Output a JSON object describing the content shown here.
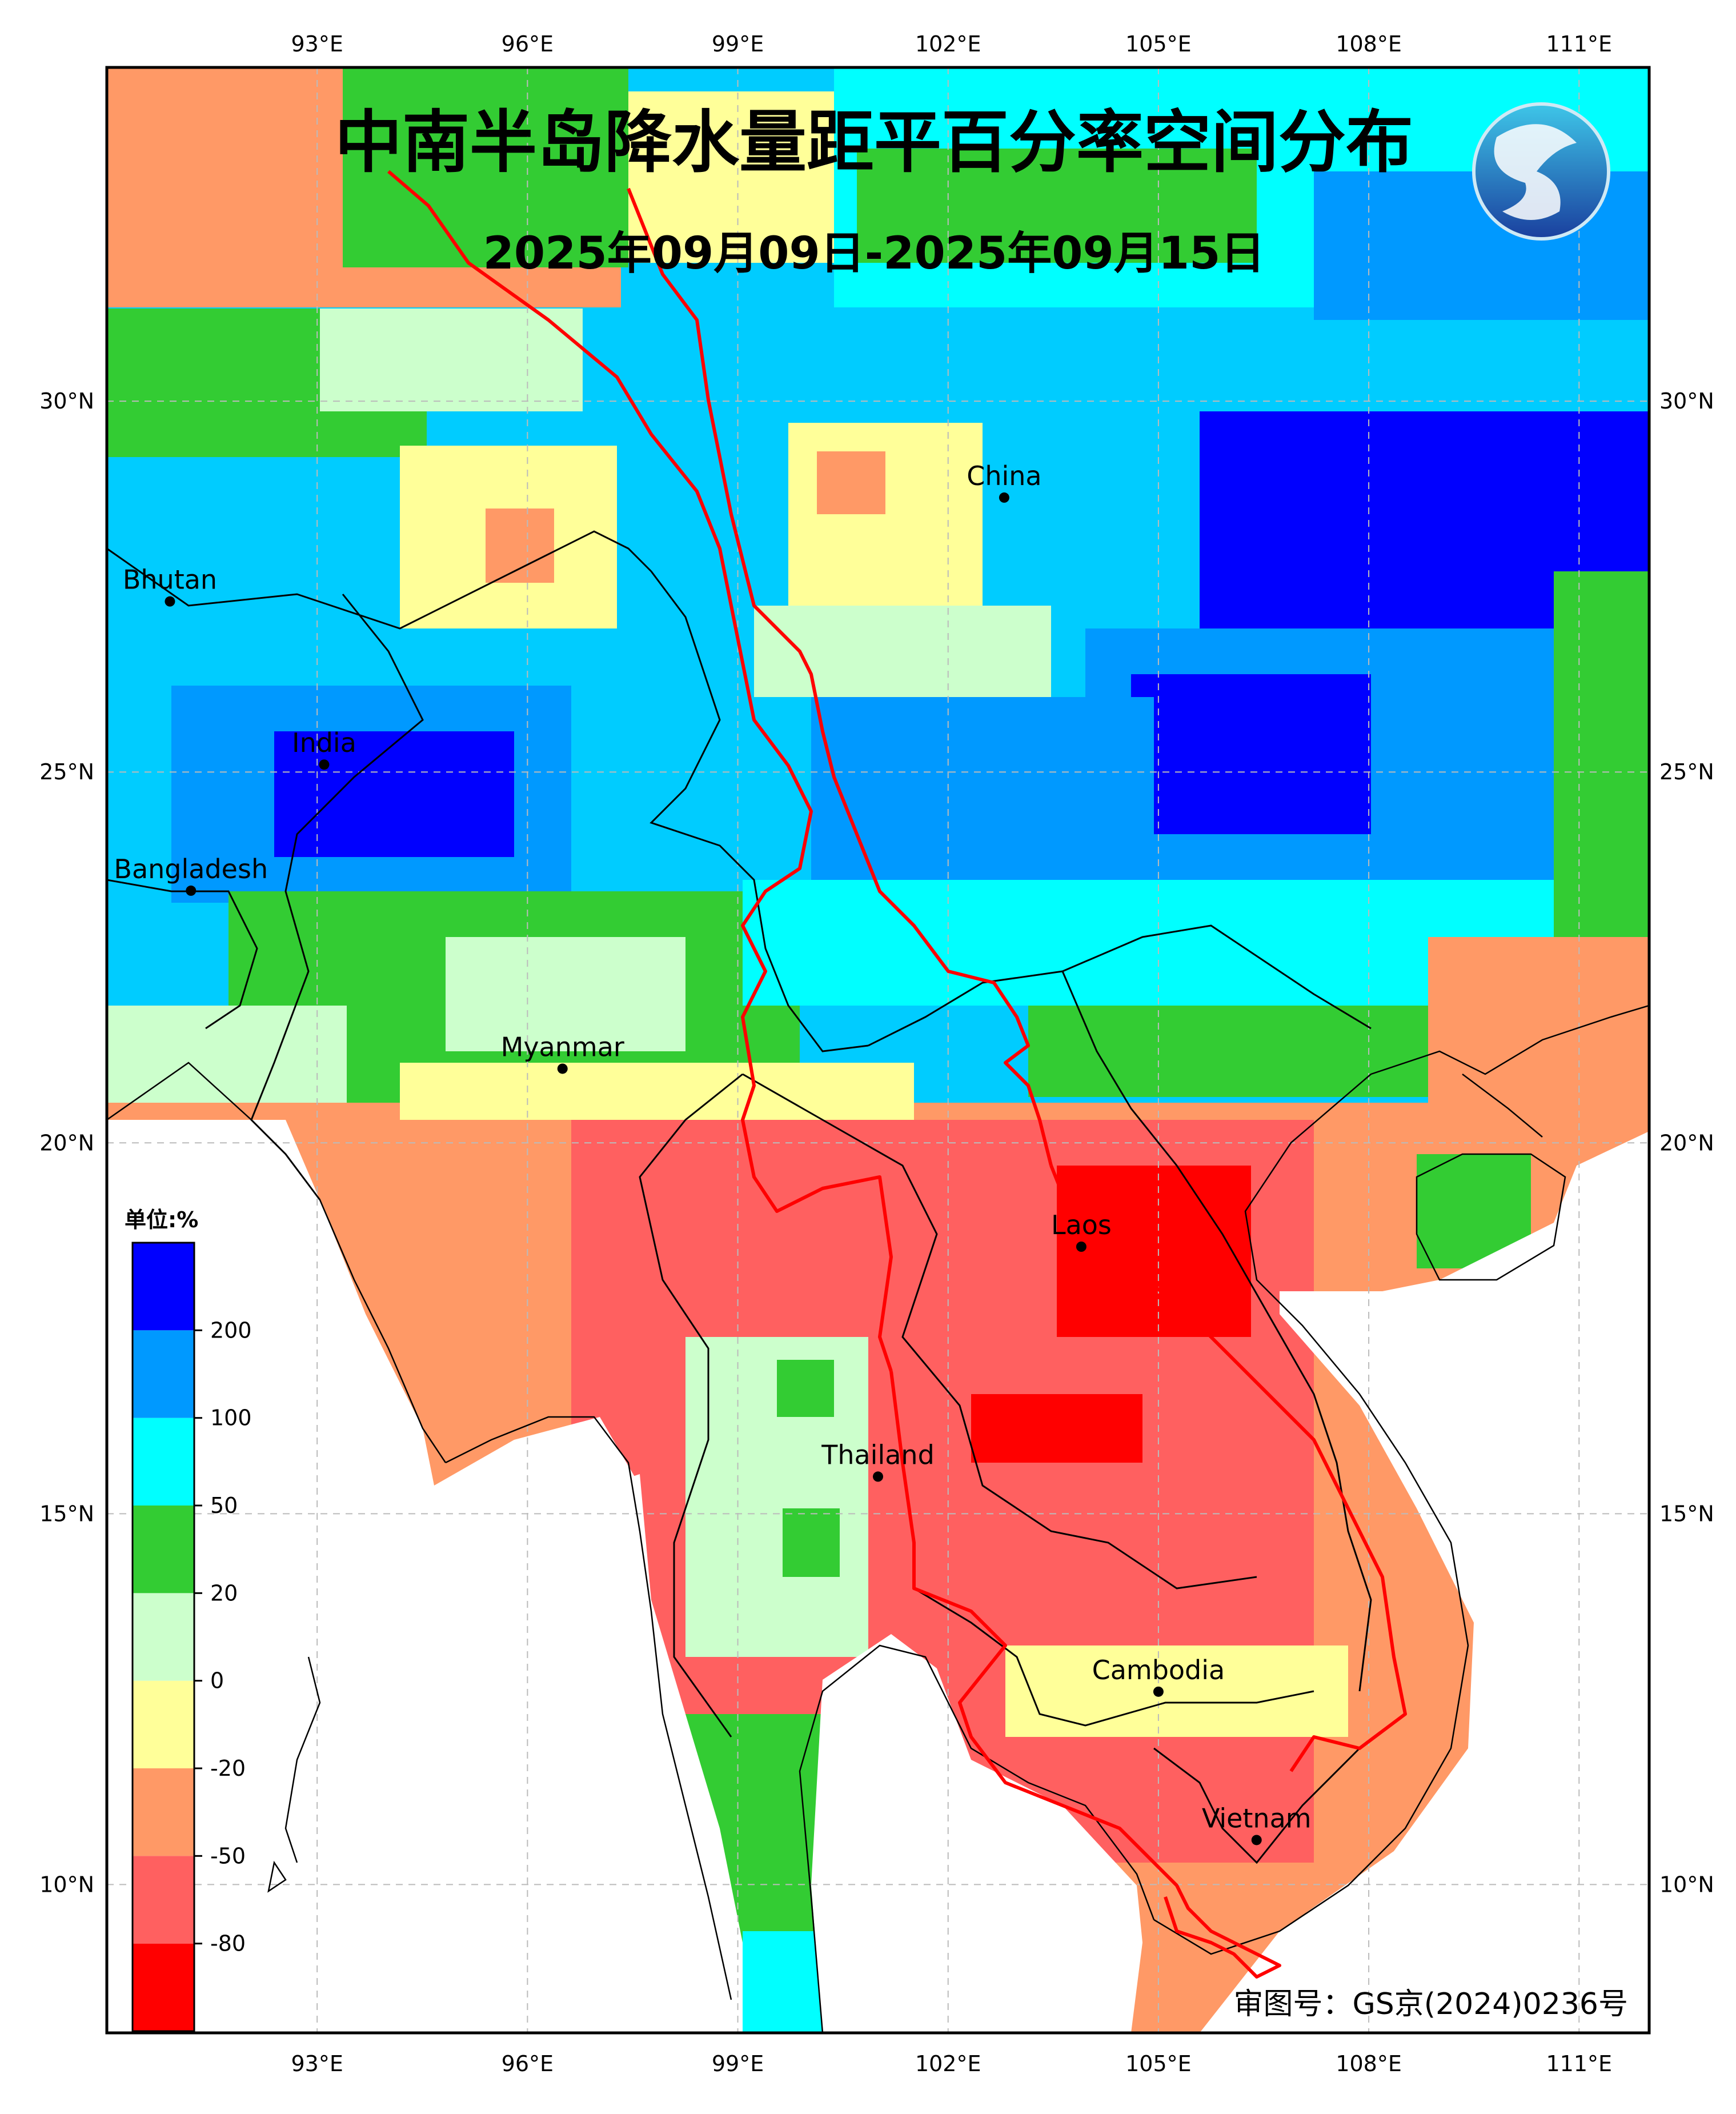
{
  "title": "中南半岛降水量距平百分率空间分布",
  "date_range": "2025年09月09日-2025年09月15日",
  "approval_number": "审图号：GS京(2024)0236号",
  "legend": {
    "unit_label": "单位:%",
    "colors": [
      "#ff0000",
      "#ff6060",
      "#ff9966",
      "#ffff99",
      "#ccffcc",
      "#33cc33",
      "#00ffff",
      "#0099ff",
      "#0000ff"
    ],
    "tick_labels": [
      "-80",
      "-50",
      "-20",
      "0",
      "20",
      "50",
      "100",
      "200"
    ]
  },
  "axes": {
    "lon_labels": [
      "93°E",
      "96°E",
      "99°E",
      "102°E",
      "105°E",
      "108°E",
      "111°E"
    ],
    "lat_labels": [
      "30°N",
      "25°N",
      "20°N",
      "15°N",
      "10°N"
    ],
    "lon_values": [
      93,
      96,
      99,
      102,
      105,
      108,
      111
    ],
    "lat_values": [
      30,
      25,
      20,
      15,
      10
    ],
    "extent": {
      "lon_min": 90,
      "lon_max": 112,
      "lat_min": 8,
      "lat_max": 34.5
    },
    "grid": true
  },
  "places": [
    {
      "name": "China",
      "lon": 102.8,
      "lat": 28.7
    },
    {
      "name": "Bhutan",
      "lon": 90.9,
      "lat": 27.3
    },
    {
      "name": "India",
      "lon": 93.1,
      "lat": 25.1
    },
    {
      "name": "Bangladesh",
      "lon": 91.2,
      "lat": 23.4
    },
    {
      "name": "Myanmar",
      "lon": 96.5,
      "lat": 21.0
    },
    {
      "name": "Laos",
      "lon": 103.9,
      "lat": 18.6
    },
    {
      "name": "Thailand",
      "lon": 101.0,
      "lat": 15.5
    },
    {
      "name": "Cambodia",
      "lon": 105.0,
      "lat": 12.6
    },
    {
      "name": "Vietnam",
      "lon": 106.4,
      "lat": 10.6
    }
  ],
  "logo_icon": "cma-logo-icon"
}
